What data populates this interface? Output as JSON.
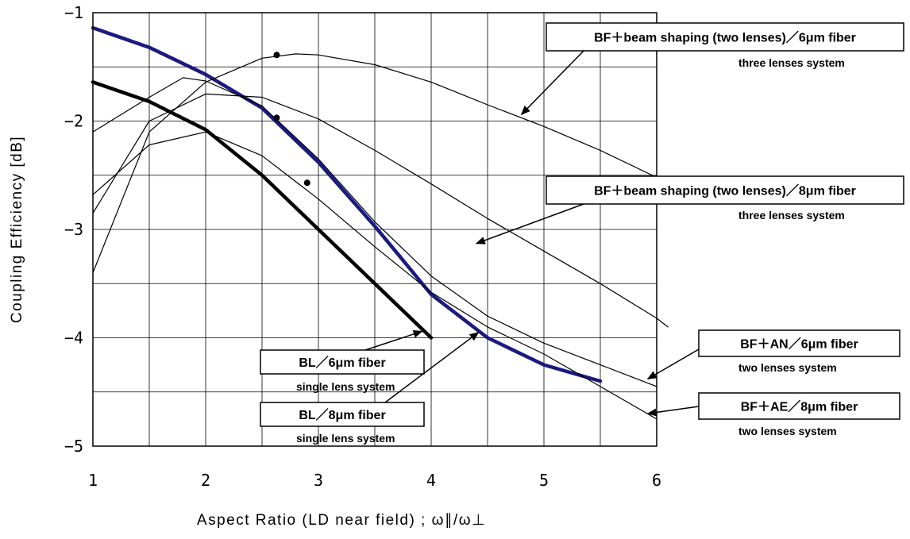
{
  "chart_data": {
    "type": "line",
    "title": "",
    "xlabel": "Aspect Ratio (LD near field) ; ω∥/ω⊥",
    "ylabel": "Coupling Efficiency [dB]",
    "xlim": [
      1,
      6
    ],
    "ylim": [
      -5,
      -1
    ],
    "x_ticks": [
      "1",
      "2",
      "3",
      "4",
      "5",
      "6"
    ],
    "y_ticks": [
      "−1",
      "−2",
      "−3",
      "−4",
      "−5"
    ],
    "grid": true,
    "series": [
      {
        "name": "BL／6μm fiber single lens system",
        "color": "#000000",
        "style": "thick",
        "points": [
          [
            1.0,
            -1.64
          ],
          [
            1.5,
            -1.82
          ],
          [
            2.0,
            -2.08
          ],
          [
            2.5,
            -2.5
          ],
          [
            3.0,
            -3.0
          ],
          [
            3.5,
            -3.5
          ],
          [
            4.0,
            -4.0
          ]
        ]
      },
      {
        "name": "BL／8μm fiber single lens system",
        "color": "#1a1a80",
        "style": "thick",
        "points": [
          [
            1.0,
            -1.14
          ],
          [
            1.5,
            -1.32
          ],
          [
            2.0,
            -1.57
          ],
          [
            2.5,
            -1.88
          ],
          [
            3.0,
            -2.38
          ],
          [
            3.5,
            -2.97
          ],
          [
            4.0,
            -3.6
          ],
          [
            4.5,
            -4.0
          ],
          [
            5.0,
            -4.25
          ],
          [
            5.5,
            -4.4
          ]
        ]
      },
      {
        "name": "BF＋beam shaping (two lenses)／6μm fiber three lenses system",
        "color": "#000000",
        "style": "thin",
        "points": [
          [
            1.0,
            -3.4
          ],
          [
            1.5,
            -2.1
          ],
          [
            2.0,
            -1.64
          ],
          [
            2.5,
            -1.42
          ],
          [
            2.8,
            -1.38
          ],
          [
            3.0,
            -1.39
          ],
          [
            3.5,
            -1.48
          ],
          [
            4.0,
            -1.64
          ],
          [
            4.5,
            -1.85
          ],
          [
            5.0,
            -2.05
          ],
          [
            5.5,
            -2.27
          ],
          [
            6.0,
            -2.52
          ],
          [
            6.1,
            -2.58
          ]
        ]
      },
      {
        "name": "BF＋beam shaping (two lenses)／8μm fiber three lenses system",
        "color": "#000000",
        "style": "thin",
        "points": [
          [
            1.0,
            -2.85
          ],
          [
            1.5,
            -2.0
          ],
          [
            2.0,
            -1.75
          ],
          [
            2.5,
            -1.78
          ],
          [
            3.0,
            -1.98
          ],
          [
            3.5,
            -2.27
          ],
          [
            4.0,
            -2.58
          ],
          [
            4.5,
            -2.9
          ],
          [
            5.0,
            -3.2
          ],
          [
            5.5,
            -3.5
          ],
          [
            6.0,
            -3.82
          ],
          [
            6.1,
            -3.9
          ]
        ]
      },
      {
        "name": "BF＋AN／6μm fiber two lenses system",
        "color": "#000000",
        "style": "thin",
        "points": [
          [
            1.0,
            -2.1
          ],
          [
            1.5,
            -1.78
          ],
          [
            1.8,
            -1.6
          ],
          [
            2.0,
            -1.63
          ],
          [
            2.5,
            -1.86
          ],
          [
            3.0,
            -2.35
          ],
          [
            3.5,
            -2.93
          ],
          [
            4.0,
            -3.43
          ],
          [
            4.5,
            -3.8
          ],
          [
            5.0,
            -4.05
          ],
          [
            5.5,
            -4.25
          ],
          [
            6.0,
            -4.45
          ]
        ]
      },
      {
        "name": "BF＋AE／8μm fiber two lenses system",
        "color": "#000000",
        "style": "thin",
        "points": [
          [
            1.0,
            -2.68
          ],
          [
            1.5,
            -2.22
          ],
          [
            2.0,
            -2.1
          ],
          [
            2.5,
            -2.32
          ],
          [
            3.0,
            -2.72
          ],
          [
            3.5,
            -3.16
          ],
          [
            4.0,
            -3.58
          ],
          [
            4.5,
            -3.9
          ],
          [
            5.0,
            -4.15
          ],
          [
            5.5,
            -4.45
          ],
          [
            6.0,
            -4.75
          ]
        ]
      }
    ],
    "markers": [
      [
        2.63,
        -1.39
      ],
      [
        2.63,
        -1.97
      ],
      [
        2.9,
        -2.57
      ]
    ],
    "annotations": [
      {
        "id": "a1",
        "label": "BF＋beam shaping (two lenses)／6μm  fiber",
        "sublabel": "three lenses system",
        "points_to": [
          4.8,
          -1.94
        ]
      },
      {
        "id": "a2",
        "label": "BF＋beam shaping (two lenses)／8μm  fiber",
        "sublabel": "three lenses system",
        "points_to": [
          4.4,
          -3.13
        ]
      },
      {
        "id": "a3",
        "label": "BF＋AN／6μm fiber",
        "sublabel": "two lenses system",
        "points_to": [
          5.92,
          -4.38
        ]
      },
      {
        "id": "a4",
        "label": "BF＋AE／8μm fiber",
        "sublabel": "two lenses system",
        "points_to": [
          5.92,
          -4.7
        ]
      },
      {
        "id": "a5",
        "label": "BL／6μm fiber",
        "sublabel": "single lens system",
        "points_to": [
          3.92,
          -3.94
        ]
      },
      {
        "id": "a6",
        "label": "BL／8μm fiber",
        "sublabel": "single lens system",
        "points_to": [
          4.42,
          -3.95
        ]
      }
    ]
  }
}
